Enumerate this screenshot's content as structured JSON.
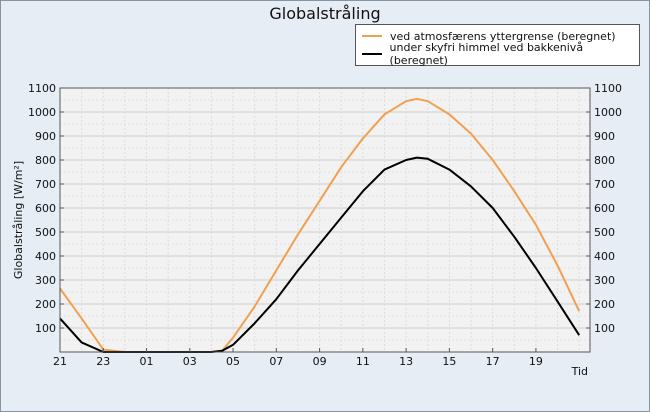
{
  "chart_data": {
    "type": "line",
    "title": "Globalstråling",
    "ylabel": "Globalstråling [W/m²]",
    "xlabel": "Tid",
    "ylim": [
      0,
      1100
    ],
    "yticks": [
      100,
      200,
      300,
      400,
      500,
      600,
      700,
      800,
      900,
      1000,
      1100
    ],
    "xlim": [
      21,
      45.5
    ],
    "xticks": [
      {
        "x": 21,
        "label": "21"
      },
      {
        "x": 23,
        "label": "23"
      },
      {
        "x": 25,
        "label": "01"
      },
      {
        "x": 27,
        "label": "03"
      },
      {
        "x": 29,
        "label": "05"
      },
      {
        "x": 31,
        "label": "07"
      },
      {
        "x": 33,
        "label": "09"
      },
      {
        "x": 35,
        "label": "11"
      },
      {
        "x": 37,
        "label": "13"
      },
      {
        "x": 39,
        "label": "15"
      },
      {
        "x": 41,
        "label": "17"
      },
      {
        "x": 43,
        "label": "19"
      }
    ],
    "grid": true,
    "legend_position": "top-right",
    "series": [
      {
        "name": "ved atmosfærens  yttergrense (beregnet)",
        "color": "#f0a050",
        "x": [
          21,
          22,
          23,
          24,
          25,
          26,
          27,
          28,
          28.5,
          29,
          30,
          31,
          32,
          33,
          34,
          35,
          36,
          37,
          37.5,
          38,
          39,
          40,
          41,
          42,
          43,
          44,
          45
        ],
        "y": [
          265,
          140,
          10,
          0,
          0,
          0,
          0,
          0,
          5,
          60,
          190,
          340,
          490,
          630,
          770,
          890,
          990,
          1045,
          1055,
          1045,
          990,
          910,
          800,
          670,
          530,
          360,
          170
        ]
      },
      {
        "name": "under skyfri himmel ved bakkenivå (beregnet)",
        "color": "#000000",
        "x": [
          21,
          22,
          23,
          24,
          25,
          26,
          27,
          28,
          28.5,
          29,
          30,
          31,
          32,
          33,
          34,
          35,
          36,
          37,
          37.5,
          38,
          39,
          40,
          41,
          42,
          43,
          44,
          45
        ],
        "y": [
          140,
          40,
          0,
          0,
          0,
          0,
          0,
          0,
          5,
          30,
          120,
          220,
          340,
          450,
          560,
          670,
          760,
          800,
          810,
          805,
          760,
          690,
          600,
          480,
          350,
          210,
          70
        ]
      }
    ]
  }
}
